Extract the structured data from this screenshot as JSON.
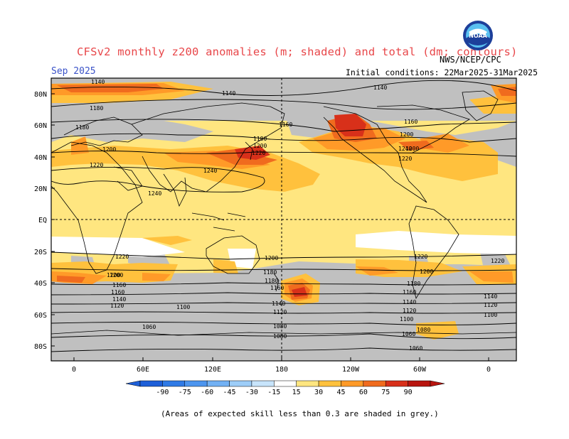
{
  "header": {
    "title": "CFSv2 monthly z200 anomalies (m; shaded) and total (dm; contours)",
    "month": "Sep 2025",
    "agency": "NWS/NCEP/CPC",
    "initial_conditions": "Initial conditions: 22Mar2025-31Mar2025",
    "logo_text": "NOAA"
  },
  "lat_labels": [
    "80N",
    "60N",
    "40N",
    "20N",
    "EQ",
    "20S",
    "40S",
    "60S",
    "80S"
  ],
  "lon_labels": [
    "0",
    "60E",
    "120E",
    "180",
    "120W",
    "60W",
    "0"
  ],
  "colorbar": {
    "labels": [
      "-90",
      "-75",
      "-60",
      "-45",
      "-30",
      "-15",
      "15",
      "30",
      "45",
      "60",
      "75",
      "90"
    ],
    "colors": [
      "#1e5fd8",
      "#2f7ae6",
      "#4c95ef",
      "#72b1f4",
      "#9dcdf8",
      "#c7e4fb",
      "#ffffff",
      "#ffe680",
      "#ffc13d",
      "#ff9a28",
      "#f06b1e",
      "#d8301a",
      "#b8150f"
    ]
  },
  "contour_labels": {
    "north": [
      "1140",
      "1140",
      "1140",
      "1160",
      "1160",
      "1180",
      "1180",
      "1180",
      "1200",
      "1200",
      "1220",
      "1220",
      "1240",
      "1240",
      "1240",
      "1200",
      "1200",
      "1220"
    ],
    "south": [
      "1220",
      "1200",
      "1200",
      "1220",
      "1200",
      "1180",
      "1160",
      "1140",
      "1120",
      "1100",
      "1080",
      "1080",
      "1060",
      "1060",
      "1160",
      "1140",
      "1120",
      "1100",
      "1080",
      "1060",
      "1180",
      "1160",
      "1140",
      "1120",
      "1220",
      "1200",
      "1180",
      "1160",
      "1140",
      "1120",
      "1100"
    ]
  },
  "footnote": "(Areas of expected skill less than 0.3 are shaded in grey.)"
}
